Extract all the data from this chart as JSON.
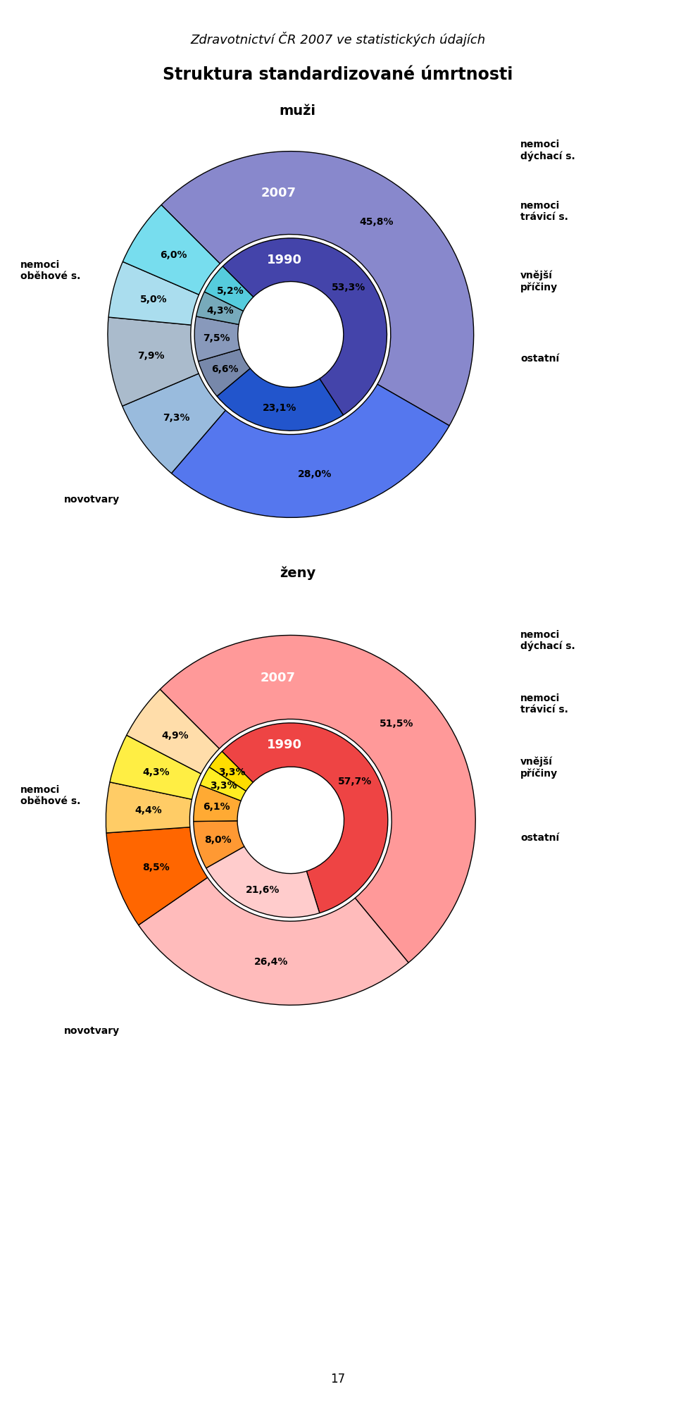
{
  "page_title": "Zdravotnictví ČR 2007 ve statistických údajích",
  "main_title": "Struktura standardizované úmrtnosti",
  "men_title": "muži",
  "women_title": "ženy",
  "page_number": "17",
  "men_outer_segs": [
    {
      "label": "45,8%",
      "value": 45.8,
      "color": "#8888cc"
    },
    {
      "label": "28,0%",
      "value": 28.0,
      "color": "#5577ee"
    },
    {
      "label": "7,3%",
      "value": 7.3,
      "color": "#99bbdd"
    },
    {
      "label": "7,9%",
      "value": 7.9,
      "color": "#aabbcc"
    },
    {
      "label": "5,0%",
      "value": 5.0,
      "color": "#aaddee"
    },
    {
      "label": "6,0%",
      "value": 6.0,
      "color": "#77ddee"
    }
  ],
  "men_inner_segs": [
    {
      "label": "53,3%",
      "value": 53.3,
      "color": "#4444aa"
    },
    {
      "label": "23,1%",
      "value": 23.1,
      "color": "#2255cc"
    },
    {
      "label": "6,6%",
      "value": 6.6,
      "color": "#7788aa"
    },
    {
      "label": "7,5%",
      "value": 7.5,
      "color": "#8899bb"
    },
    {
      "label": "4,3%",
      "value": 4.3,
      "color": "#77aabb"
    },
    {
      "label": "5,2%",
      "value": 5.2,
      "color": "#55ccdd"
    }
  ],
  "women_outer_segs": [
    {
      "label": "51,5%",
      "value": 51.5,
      "color": "#ff9999"
    },
    {
      "label": "26,4%",
      "value": 26.4,
      "color": "#ffbbbb"
    },
    {
      "label": "8,5%",
      "value": 8.5,
      "color": "#ff6600"
    },
    {
      "label": "4,4%",
      "value": 4.4,
      "color": "#ffcc66"
    },
    {
      "label": "4,3%",
      "value": 4.3,
      "color": "#ffee44"
    },
    {
      "label": "4,9%",
      "value": 4.9,
      "color": "#ffddaa"
    }
  ],
  "women_inner_segs": [
    {
      "label": "57,7%",
      "value": 57.7,
      "color": "#ee4444"
    },
    {
      "label": "21,6%",
      "value": 21.6,
      "color": "#ffcccc"
    },
    {
      "label": "8,0%",
      "value": 8.0,
      "color": "#ff9933"
    },
    {
      "label": "6,1%",
      "value": 6.1,
      "color": "#ffaa33"
    },
    {
      "label": "3,3%",
      "value": 3.3,
      "color": "#ffee22"
    },
    {
      "label": "3,3%",
      "value": 3.3,
      "color": "#ffdd00"
    }
  ]
}
